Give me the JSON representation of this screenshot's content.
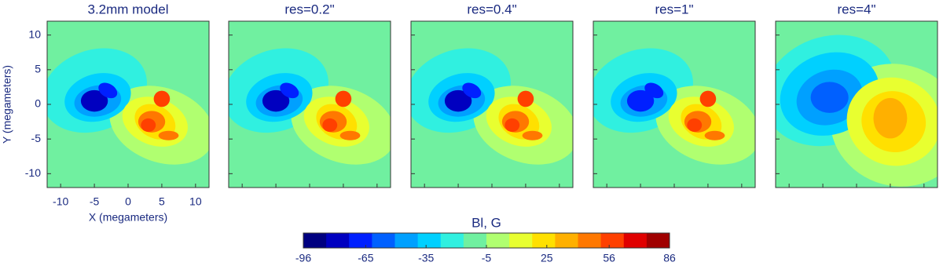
{
  "chart_data": [
    {
      "type": "heatmap",
      "title": "3.2mm model",
      "xlabel": "X (megameters)",
      "ylabel": "Y (megameters)",
      "xlim": [
        -12,
        12
      ],
      "ylim": [
        -12,
        12
      ],
      "xticks": [
        -10,
        -5,
        0,
        5,
        10
      ],
      "yticks": [
        -10,
        -5,
        0,
        5,
        10
      ]
    },
    {
      "type": "heatmap",
      "title": "res=0.2\""
    },
    {
      "type": "heatmap",
      "title": "res=0.4\""
    },
    {
      "type": "heatmap",
      "title": "res=1\""
    },
    {
      "type": "heatmap",
      "title": "res=4\""
    },
    {
      "type": "colorbar",
      "title": "Bl, G",
      "xlim": [
        -96,
        86
      ],
      "xticks": [
        -96,
        -65,
        -35,
        -5,
        25,
        56,
        86
      ],
      "colors": [
        "#000080",
        "#0000c0",
        "#0020ff",
        "#0060ff",
        "#00a0ff",
        "#00d0ff",
        "#30f0e0",
        "#70f0a0",
        "#b0ff70",
        "#e8ff30",
        "#ffe000",
        "#ffb000",
        "#ff7800",
        "#ff4000",
        "#e00000",
        "#a00000"
      ]
    }
  ]
}
